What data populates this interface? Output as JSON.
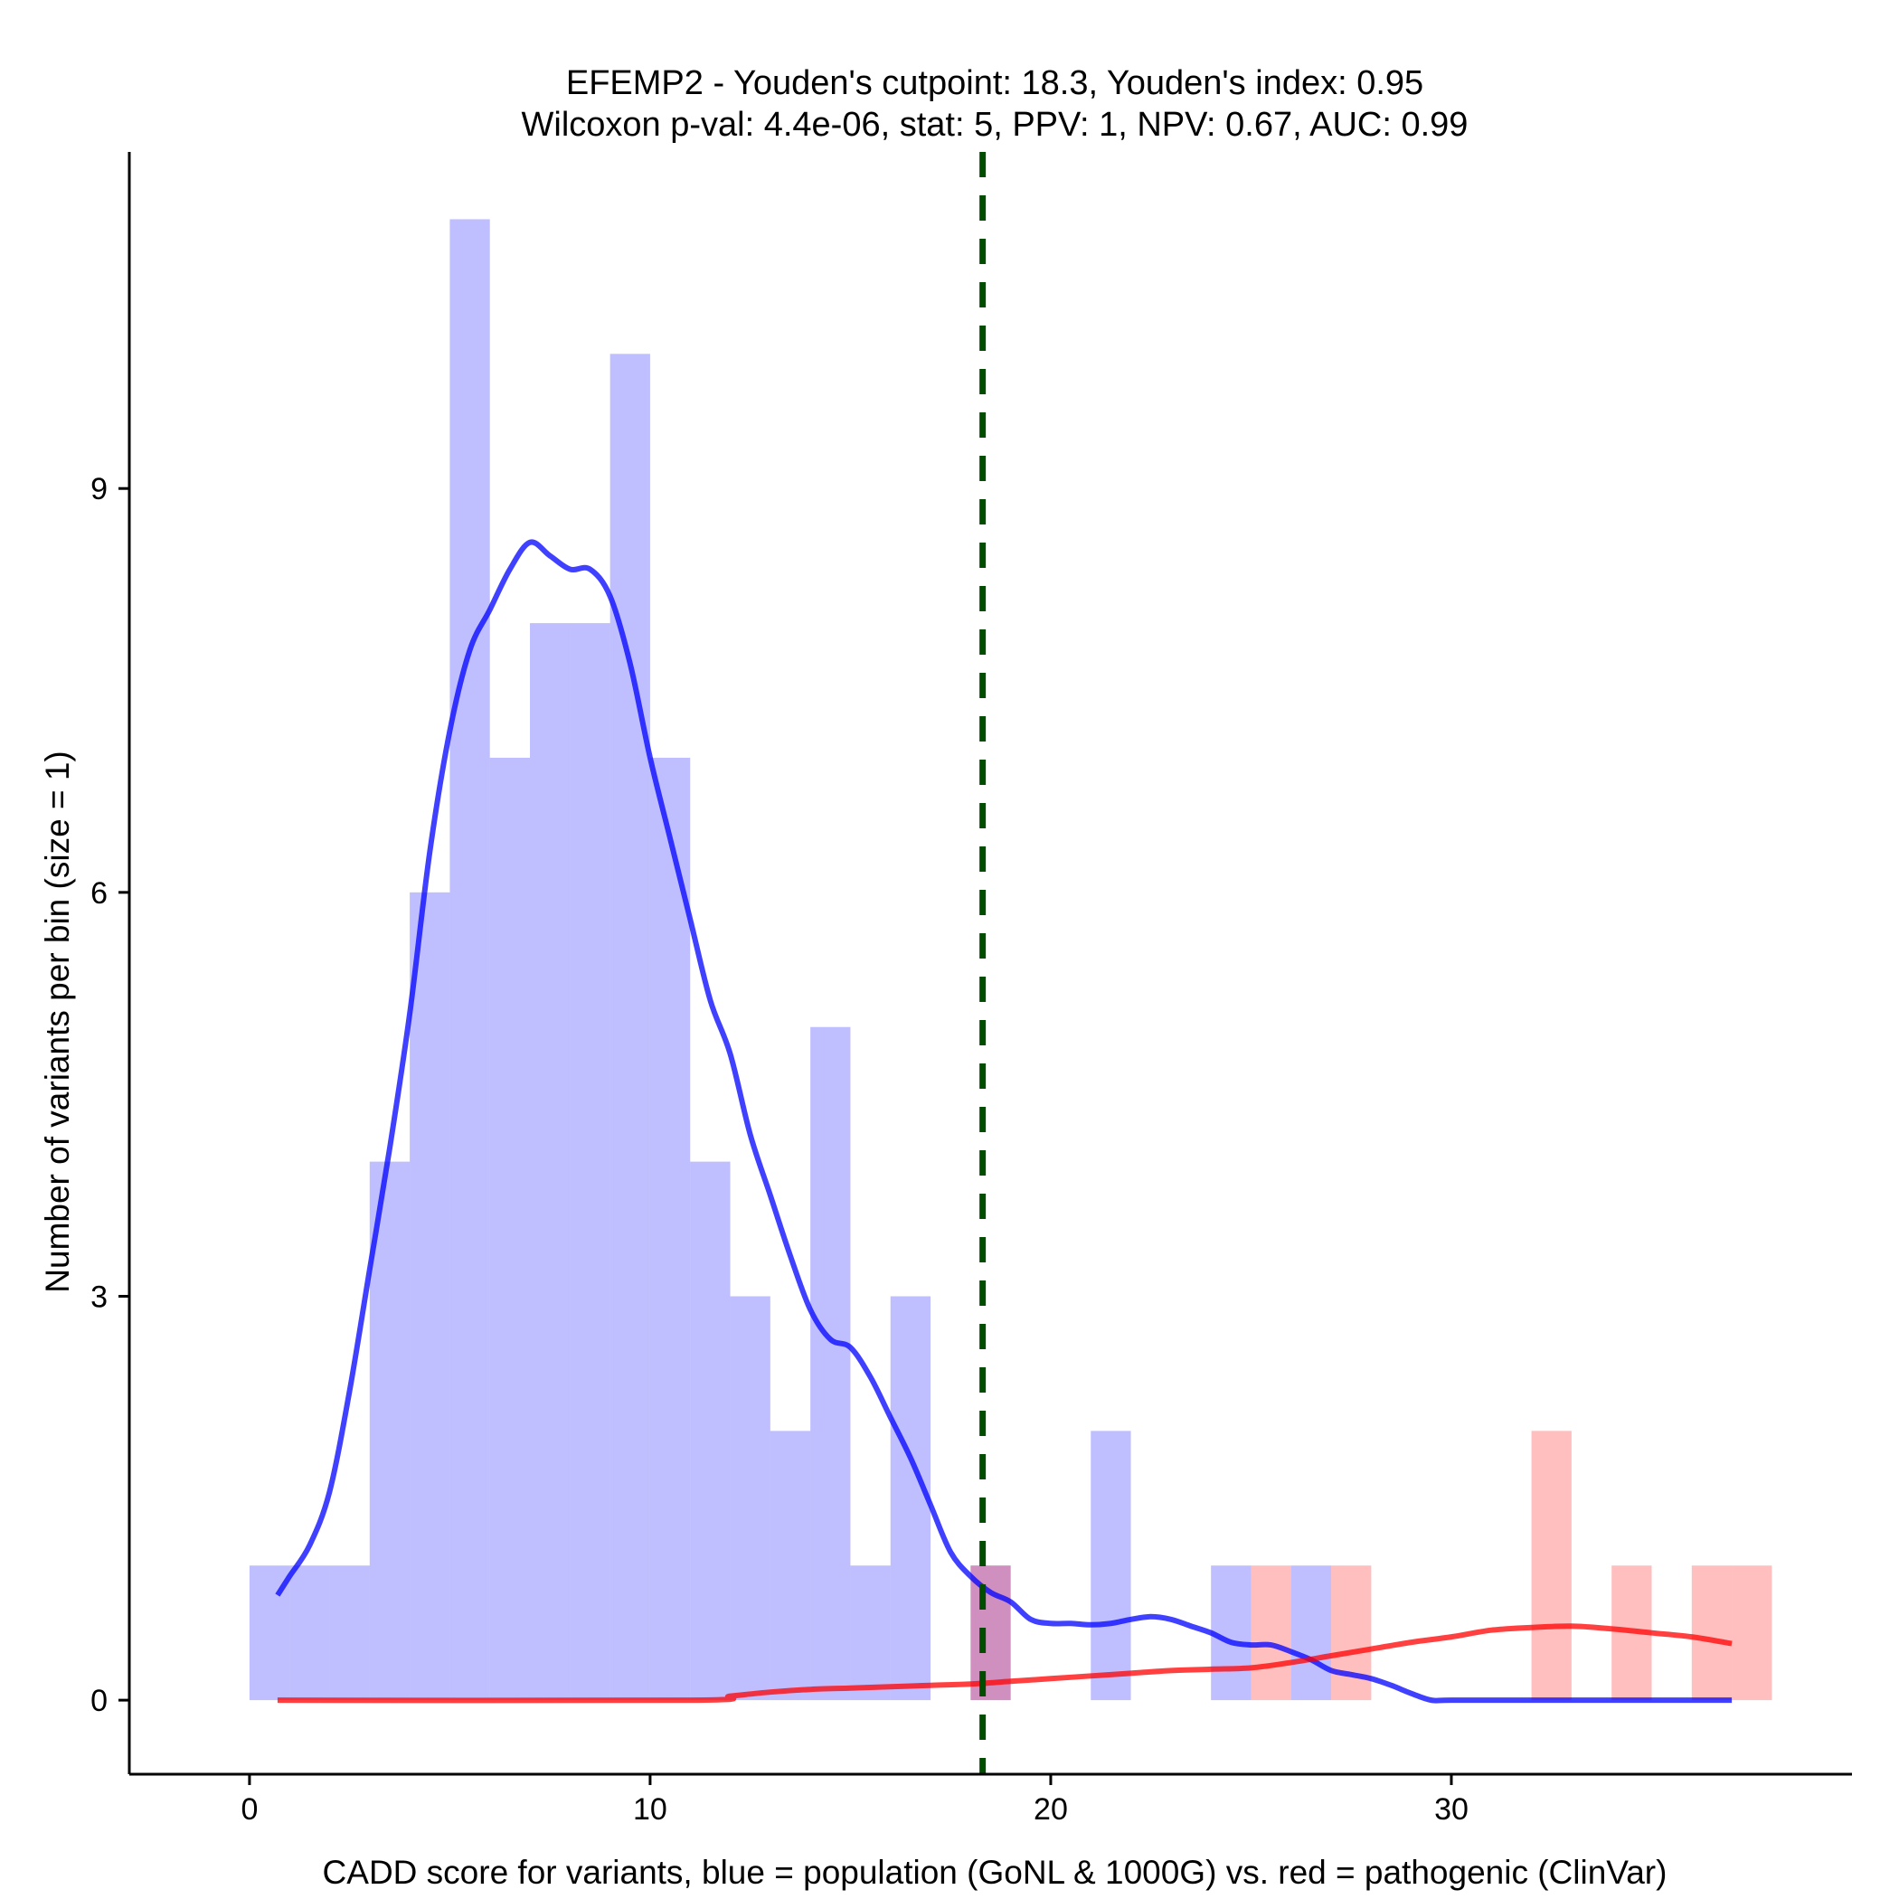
{
  "chart_data": {
    "type": "bar",
    "title_lines": [
      "EFEMP2 - Youden's cutpoint: 18.3, Youden's index: 0.95",
      "Wilcoxon p-val: 4.4e-06, stat: 5, PPV: 1, NPV: 0.67, AUC: 0.99"
    ],
    "xlabel": "CADD score for variants, blue = population (GoNL & 1000G) vs. red = pathogenic (ClinVar)",
    "ylabel": "Number of variants per bin (size = 1)",
    "xlim": [
      -3,
      40
    ],
    "ylim": [
      -0.55,
      11.5
    ],
    "x_ticks": [
      0,
      10,
      20,
      30
    ],
    "y_ticks": [
      0,
      3,
      6,
      9
    ],
    "bin_width": 1,
    "cutpoint": 18.3,
    "grid": false,
    "legend": "none",
    "series": [
      {
        "name": "population (GoNL & 1000G)",
        "color": "#0000ff",
        "bins": [
          {
            "x": 0,
            "count": 1
          },
          {
            "x": 1,
            "count": 1
          },
          {
            "x": 2,
            "count": 1
          },
          {
            "x": 3,
            "count": 4
          },
          {
            "x": 4,
            "count": 6
          },
          {
            "x": 5,
            "count": 11
          },
          {
            "x": 6,
            "count": 7
          },
          {
            "x": 7,
            "count": 8
          },
          {
            "x": 8,
            "count": 8
          },
          {
            "x": 9,
            "count": 10
          },
          {
            "x": 10,
            "count": 7
          },
          {
            "x": 11,
            "count": 4
          },
          {
            "x": 12,
            "count": 3
          },
          {
            "x": 13,
            "count": 2
          },
          {
            "x": 14,
            "count": 5
          },
          {
            "x": 15,
            "count": 1
          },
          {
            "x": 16,
            "count": 3
          },
          {
            "x": 18,
            "count": 1
          },
          {
            "x": 21,
            "count": 2
          },
          {
            "x": 24,
            "count": 1
          },
          {
            "x": 26,
            "count": 1
          }
        ],
        "density": [
          [
            0.7,
            0.78
          ],
          [
            1.0,
            0.92
          ],
          [
            1.5,
            1.15
          ],
          [
            2.0,
            1.55
          ],
          [
            2.5,
            2.3
          ],
          [
            3.0,
            3.2
          ],
          [
            3.5,
            4.1
          ],
          [
            4.0,
            5.1
          ],
          [
            4.5,
            6.3
          ],
          [
            5.0,
            7.2
          ],
          [
            5.5,
            7.8
          ],
          [
            6.0,
            8.1
          ],
          [
            6.5,
            8.4
          ],
          [
            7.0,
            8.6
          ],
          [
            7.5,
            8.5
          ],
          [
            8.0,
            8.4
          ],
          [
            8.5,
            8.4
          ],
          [
            9.0,
            8.2
          ],
          [
            9.5,
            7.7
          ],
          [
            10.0,
            7.0
          ],
          [
            10.5,
            6.4
          ],
          [
            11.0,
            5.8
          ],
          [
            11.5,
            5.2
          ],
          [
            12.0,
            4.8
          ],
          [
            12.5,
            4.2
          ],
          [
            13.0,
            3.75
          ],
          [
            13.5,
            3.3
          ],
          [
            14.0,
            2.9
          ],
          [
            14.5,
            2.68
          ],
          [
            15.0,
            2.62
          ],
          [
            15.5,
            2.4
          ],
          [
            16.0,
            2.1
          ],
          [
            16.5,
            1.8
          ],
          [
            17.0,
            1.45
          ],
          [
            17.5,
            1.1
          ],
          [
            18.0,
            0.92
          ],
          [
            18.5,
            0.8
          ],
          [
            19.0,
            0.73
          ],
          [
            19.5,
            0.6
          ],
          [
            20.0,
            0.57
          ],
          [
            20.5,
            0.57
          ],
          [
            21.0,
            0.56
          ],
          [
            21.5,
            0.57
          ],
          [
            22.0,
            0.6
          ],
          [
            22.5,
            0.62
          ],
          [
            23.0,
            0.6
          ],
          [
            23.5,
            0.55
          ],
          [
            24.0,
            0.5
          ],
          [
            24.5,
            0.43
          ],
          [
            25.0,
            0.41
          ],
          [
            25.5,
            0.41
          ],
          [
            26.0,
            0.36
          ],
          [
            26.5,
            0.3
          ],
          [
            27.0,
            0.22
          ],
          [
            27.5,
            0.19
          ],
          [
            28.0,
            0.16
          ],
          [
            28.5,
            0.11
          ],
          [
            29.0,
            0.05
          ],
          [
            29.5,
            0.0
          ],
          [
            30.0,
            0.0
          ],
          [
            32.0,
            0.0
          ],
          [
            34.0,
            0.0
          ],
          [
            36.0,
            0.0
          ],
          [
            37.0,
            0.0
          ]
        ]
      },
      {
        "name": "pathogenic (ClinVar)",
        "color": "#ff0000",
        "bins": [
          {
            "x": 18,
            "count": 1
          },
          {
            "x": 25,
            "count": 1
          },
          {
            "x": 27,
            "count": 1
          },
          {
            "x": 32,
            "count": 2
          },
          {
            "x": 34,
            "count": 1
          },
          {
            "x": 36,
            "count": 1
          },
          {
            "x": 37,
            "count": 1
          }
        ],
        "density": [
          [
            0.7,
            0.0
          ],
          [
            11.0,
            0.0
          ],
          [
            12.0,
            0.03
          ],
          [
            13.0,
            0.06
          ],
          [
            14.0,
            0.08
          ],
          [
            15.0,
            0.09
          ],
          [
            16.0,
            0.1
          ],
          [
            17.0,
            0.11
          ],
          [
            18.0,
            0.12
          ],
          [
            19.0,
            0.14
          ],
          [
            20.0,
            0.16
          ],
          [
            21.0,
            0.18
          ],
          [
            22.0,
            0.2
          ],
          [
            23.0,
            0.22
          ],
          [
            24.0,
            0.23
          ],
          [
            25.0,
            0.24
          ],
          [
            26.0,
            0.28
          ],
          [
            27.0,
            0.33
          ],
          [
            28.0,
            0.38
          ],
          [
            29.0,
            0.43
          ],
          [
            30.0,
            0.47
          ],
          [
            31.0,
            0.52
          ],
          [
            32.0,
            0.54
          ],
          [
            33.0,
            0.55
          ],
          [
            34.0,
            0.53
          ],
          [
            35.0,
            0.5
          ],
          [
            36.0,
            0.47
          ],
          [
            37.0,
            0.42
          ]
        ]
      }
    ]
  }
}
